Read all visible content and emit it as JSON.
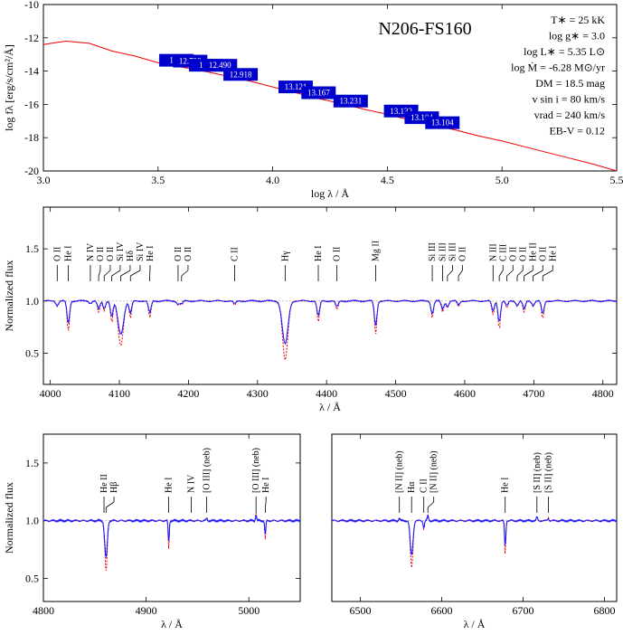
{
  "chart_data": [
    {
      "type": "line",
      "panel": "sed",
      "title": "N206-FS160",
      "xlabel": "log λ / Å",
      "ylabel": "log fλ [erg/s/cm²/Å]",
      "xlim": [
        3.0,
        5.5
      ],
      "ylim": [
        -20,
        -10
      ],
      "xticks": [
        "3.0",
        "3.5",
        "4.0",
        "4.5",
        "5.0",
        "5.5"
      ],
      "yticks": [
        "-10",
        "-12",
        "-14",
        "-16",
        "-18",
        "-20"
      ],
      "parameters": [
        "T∗ = 25 kK",
        "log g∗ = 3.0",
        "log L∗ = 5.35 L⊙",
        "log Ṁ = -6.28 M⊙/yr",
        "DM = 18.5 mag",
        "v sin i = 80 km/s",
        "vrad = 240 km/s",
        "EB-V = 0.12"
      ],
      "series": [
        {
          "x": [
            3.0,
            3.05,
            3.1,
            3.2,
            3.3,
            3.4,
            3.5,
            3.6,
            3.7,
            3.8,
            3.9,
            4.0,
            4.1,
            4.2,
            4.3,
            4.4,
            4.5,
            4.6,
            4.7,
            4.8,
            4.9,
            5.0,
            5.1,
            5.2,
            5.3,
            5.4,
            5.5
          ],
          "y": [
            -12.4,
            -12.3,
            -12.2,
            -12.4,
            -12.8,
            -13.1,
            -13.5,
            -13.75,
            -14.0,
            -14.3,
            -14.6,
            -14.95,
            -15.3,
            -15.65,
            -15.95,
            -16.3,
            -16.6,
            -16.95,
            -17.25,
            -17.55,
            -17.9,
            -18.2,
            -18.55,
            -18.9,
            -19.25,
            -19.6,
            -20.0
          ]
        }
      ],
      "photometry": [
        {
          "label": "11.1",
          "x": 3.58,
          "y": -13.35
        },
        {
          "label": "12.798",
          "x": 3.64,
          "y": -13.4
        },
        {
          "label": "12.7",
          "x": 3.71,
          "y": -13.65
        },
        {
          "label": "12.490",
          "x": 3.77,
          "y": -13.65
        },
        {
          "label": "12.918",
          "x": 3.86,
          "y": -14.2
        },
        {
          "label": "13.121",
          "x": 4.1,
          "y": -14.95
        },
        {
          "label": "13.167",
          "x": 4.2,
          "y": -15.3
        },
        {
          "label": "13.231",
          "x": 4.34,
          "y": -15.8
        },
        {
          "label": "13.132",
          "x": 4.56,
          "y": -16.4
        },
        {
          "label": "13.104",
          "x": 4.65,
          "y": -16.8
        },
        {
          "label": "13.104",
          "x": 4.74,
          "y": -17.1
        }
      ]
    },
    {
      "type": "line",
      "panel": "blue",
      "xlabel": "λ / Å",
      "ylabel": "Normalized flux",
      "xlim": [
        3990,
        4820
      ],
      "ylim": [
        0.2,
        1.9
      ],
      "xticks": [
        "4000",
        "4100",
        "4200",
        "4300",
        "4400",
        "4500",
        "4600",
        "4700",
        "4800"
      ],
      "yticks": [
        "0.5",
        "1.0",
        "1.5"
      ],
      "lines": [
        {
          "x": 4010,
          "label": "O II",
          "depth": 0.04
        },
        {
          "x": 4026,
          "label": "He I",
          "depth": 0.22
        },
        {
          "x": 4058,
          "label": "N IV",
          "depth": 0.02
        },
        {
          "x": 4070,
          "label": "O II",
          "depth": 0.08
        },
        {
          "x": 4078,
          "label": "O II",
          "depth": 0.07
        },
        {
          "x": 4089,
          "label": "Si IV",
          "depth": 0.15
        },
        {
          "x": 4102,
          "label": "Hδ",
          "depth": 0.32
        },
        {
          "x": 4116,
          "label": "Si IV",
          "depth": 0.12
        },
        {
          "x": 4144,
          "label": "He I",
          "depth": 0.12
        },
        {
          "x": 4185,
          "label": "O II",
          "depth": 0.03
        },
        {
          "x": 4190,
          "label": "O II",
          "depth": 0.03
        },
        {
          "x": 4267,
          "label": "C II",
          "depth": 0.03
        },
        {
          "x": 4340,
          "label": "Hγ",
          "depth": 0.42
        },
        {
          "x": 4388,
          "label": "He I",
          "depth": 0.15
        },
        {
          "x": 4415,
          "label": "O II",
          "depth": 0.06
        },
        {
          "x": 4471,
          "label": "Mg II",
          "depth": 0.24
        },
        {
          "x": 4553,
          "label": "Si III",
          "depth": 0.12
        },
        {
          "x": 4568,
          "label": "Si III",
          "depth": 0.08
        },
        {
          "x": 4575,
          "label": "Si III",
          "depth": 0.05
        },
        {
          "x": 4591,
          "label": "O II",
          "depth": 0.04
        },
        {
          "x": 4641,
          "label": "N III",
          "depth": 0.1
        },
        {
          "x": 4650,
          "label": "C III",
          "depth": 0.2
        },
        {
          "x": 4661,
          "label": "O II",
          "depth": 0.05
        },
        {
          "x": 4676,
          "label": "O II",
          "depth": 0.04
        },
        {
          "x": 4686,
          "label": "He II",
          "depth": 0.08
        },
        {
          "x": 4699,
          "label": "O II",
          "depth": 0.04
        },
        {
          "x": 4713,
          "label": "He I",
          "depth": 0.13
        }
      ]
    },
    {
      "type": "line",
      "panel": "hbeta",
      "xlabel": "λ / Å",
      "ylabel": "Normalized flux",
      "xlim": [
        4800,
        5050
      ],
      "ylim": [
        0.3,
        1.75
      ],
      "xticks": [
        "4800",
        "4900",
        "5000"
      ],
      "yticks": [
        "0.5",
        "1.0",
        "1.5"
      ],
      "lines": [
        {
          "x": 4859,
          "label": "He II",
          "depth": 0.02
        },
        {
          "x": 4861,
          "label": "Hβ",
          "depth": 0.32
        },
        {
          "x": 4922,
          "label": "He I",
          "depth": 0.18
        },
        {
          "x": 4944,
          "label": "N IV",
          "depth": 0.0
        },
        {
          "x": 4959,
          "label": "[O III] (neb)",
          "depth": -0.02
        },
        {
          "x": 5007,
          "label": "[O III] (neb)",
          "depth": -0.05
        },
        {
          "x": 5016,
          "label": "He I",
          "depth": 0.12
        }
      ]
    },
    {
      "type": "line",
      "panel": "halpha",
      "xlabel": "λ / Å",
      "ylabel": "",
      "xlim": [
        6465,
        6815
      ],
      "ylim": [
        0.3,
        1.75
      ],
      "xticks": [
        "6500",
        "6600",
        "6700",
        "6800"
      ],
      "yticks": [],
      "lines": [
        {
          "x": 6548,
          "label": "[N II] (neb)",
          "depth": -0.02
        },
        {
          "x": 6563,
          "label": "Hα",
          "depth": 0.3
        },
        {
          "x": 6578,
          "label": "C II",
          "depth": 0.06
        },
        {
          "x": 6583,
          "label": "[N II] (neb)",
          "depth": -0.04
        },
        {
          "x": 6678,
          "label": "He I",
          "depth": 0.22
        },
        {
          "x": 6717,
          "label": "[S II] (neb)",
          "depth": -0.03
        },
        {
          "x": 6731,
          "label": "[S II] (neb)",
          "depth": -0.02
        }
      ]
    }
  ]
}
